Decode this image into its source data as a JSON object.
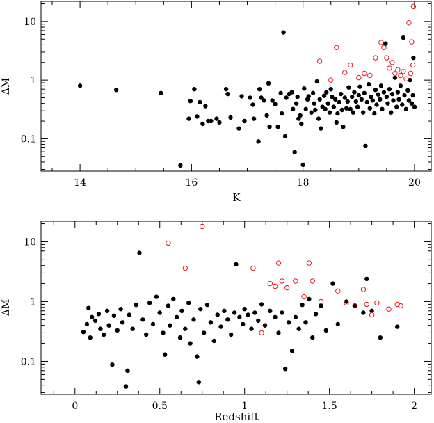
{
  "chart_data": [
    {
      "type": "scatter",
      "title": "",
      "xlabel": "K",
      "ylabel": "ΔM",
      "xlim": [
        13.3,
        20.3
      ],
      "ylim": [
        0.028,
        22
      ],
      "yscale": "log",
      "xticks": [
        14,
        16,
        18,
        20
      ],
      "xtick_labels": [
        "14",
        "16",
        "18",
        "20"
      ],
      "yticks": [
        0.1,
        1,
        10
      ],
      "ytick_labels": [
        "0.1",
        "1",
        "10"
      ],
      "grid": false,
      "series": [
        {
          "marker": "filled-circle",
          "color": "#000000",
          "points": [
            [
              14.0,
              0.8
            ],
            [
              14.65,
              0.68
            ],
            [
              15.45,
              0.6
            ],
            [
              15.8,
              0.035
            ],
            [
              15.95,
              0.22
            ],
            [
              15.98,
              0.44
            ],
            [
              16.05,
              0.7
            ],
            [
              16.1,
              0.24
            ],
            [
              16.15,
              0.42
            ],
            [
              16.2,
              0.18
            ],
            [
              16.25,
              0.36
            ],
            [
              16.3,
              0.2
            ],
            [
              16.35,
              0.2
            ],
            [
              16.45,
              0.22
            ],
            [
              16.5,
              0.19
            ],
            [
              16.62,
              0.7
            ],
            [
              16.65,
              0.58
            ],
            [
              16.7,
              0.23
            ],
            [
              16.85,
              0.15
            ],
            [
              16.9,
              0.53
            ],
            [
              16.95,
              0.2
            ],
            [
              17.05,
              0.5
            ],
            [
              17.1,
              0.38
            ],
            [
              17.12,
              0.22
            ],
            [
              17.2,
              0.09
            ],
            [
              17.22,
              0.7
            ],
            [
              17.25,
              0.5
            ],
            [
              17.3,
              0.45
            ],
            [
              17.35,
              0.25
            ],
            [
              17.38,
              0.88
            ],
            [
              17.4,
              0.16
            ],
            [
              17.45,
              0.45
            ],
            [
              17.5,
              0.39
            ],
            [
              17.55,
              0.16
            ],
            [
              17.6,
              0.6
            ],
            [
              17.62,
              0.27
            ],
            [
              17.65,
              6.5
            ],
            [
              17.68,
              0.11
            ],
            [
              17.7,
              0.5
            ],
            [
              17.75,
              0.58
            ],
            [
              17.8,
              0.62
            ],
            [
              17.82,
              0.32
            ],
            [
              17.85,
              0.059
            ],
            [
              17.88,
              0.4
            ],
            [
              17.9,
              0.52
            ],
            [
              17.92,
              0.22
            ],
            [
              17.95,
              0.25
            ],
            [
              17.97,
              0.18
            ],
            [
              18.0,
              0.036
            ],
            [
              18.02,
              0.72
            ],
            [
              18.05,
              0.32
            ],
            [
              18.08,
              0.47
            ],
            [
              18.1,
              0.53
            ],
            [
              18.15,
              0.28
            ],
            [
              18.18,
              0.6
            ],
            [
              18.2,
              0.4
            ],
            [
              18.22,
              0.31
            ],
            [
              18.25,
              0.95
            ],
            [
              18.28,
              0.22
            ],
            [
              18.3,
              0.47
            ],
            [
              18.32,
              0.15
            ],
            [
              18.35,
              0.35
            ],
            [
              18.38,
              0.54
            ],
            [
              18.4,
              0.32
            ],
            [
              18.42,
              0.62
            ],
            [
              18.45,
              0.4
            ],
            [
              18.48,
              0.28
            ],
            [
              18.5,
              0.7
            ],
            [
              18.52,
              0.52
            ],
            [
              18.55,
              0.35
            ],
            [
              18.58,
              0.47
            ],
            [
              18.6,
              0.19
            ],
            [
              18.62,
              0.27
            ],
            [
              18.65,
              0.42
            ],
            [
              18.68,
              0.58
            ],
            [
              18.7,
              0.31
            ],
            [
              18.72,
              0.16
            ],
            [
              18.75,
              0.5
            ],
            [
              18.78,
              0.33
            ],
            [
              18.8,
              0.43
            ],
            [
              18.82,
              0.75
            ],
            [
              18.85,
              0.32
            ],
            [
              18.88,
              0.52
            ],
            [
              18.9,
              0.28
            ],
            [
              18.92,
              0.62
            ],
            [
              18.95,
              0.43
            ],
            [
              18.98,
              0.35
            ],
            [
              19.0,
              0.55
            ],
            [
              19.02,
              0.77
            ],
            [
              19.05,
              0.47
            ],
            [
              19.08,
              0.28
            ],
            [
              19.1,
              0.6
            ],
            [
              19.12,
              0.075
            ],
            [
              19.15,
              0.42
            ],
            [
              19.18,
              0.85
            ],
            [
              19.2,
              0.33
            ],
            [
              19.22,
              0.52
            ],
            [
              19.25,
              0.45
            ],
            [
              19.28,
              0.27
            ],
            [
              19.3,
              0.68
            ],
            [
              19.32,
              0.38
            ],
            [
              19.35,
              0.57
            ],
            [
              19.38,
              0.47
            ],
            [
              19.4,
              0.8
            ],
            [
              19.42,
              0.32
            ],
            [
              19.45,
              0.62
            ],
            [
              19.48,
              4.2
            ],
            [
              19.5,
              0.52
            ],
            [
              19.52,
              0.4
            ],
            [
              19.55,
              0.7
            ],
            [
              19.58,
              0.28
            ],
            [
              19.6,
              0.58
            ],
            [
              19.62,
              0.45
            ],
            [
              19.65,
              1.1
            ],
            [
              19.68,
              0.35
            ],
            [
              19.7,
              0.62
            ],
            [
              19.72,
              0.47
            ],
            [
              19.75,
              0.8
            ],
            [
              19.78,
              0.38
            ],
            [
              19.8,
              5.3
            ],
            [
              19.82,
              0.55
            ],
            [
              19.85,
              0.32
            ],
            [
              19.88,
              0.67
            ],
            [
              19.9,
              0.45
            ],
            [
              19.92,
              1.0
            ],
            [
              19.95,
              0.4
            ],
            [
              19.97,
              0.55
            ],
            [
              19.98,
              2.4
            ],
            [
              20.0,
              0.35
            ]
          ]
        },
        {
          "marker": "open-circle",
          "color": "#e8191c",
          "points": [
            [
              18.3,
              2.1
            ],
            [
              18.5,
              1.0
            ],
            [
              18.6,
              3.6
            ],
            [
              18.75,
              1.35
            ],
            [
              18.85,
              1.8
            ],
            [
              19.0,
              1.1
            ],
            [
              19.1,
              1.3
            ],
            [
              19.2,
              1.2
            ],
            [
              19.3,
              2.4
            ],
            [
              19.4,
              4.4
            ],
            [
              19.45,
              3.6
            ],
            [
              19.5,
              2.4
            ],
            [
              19.55,
              1.6
            ],
            [
              19.6,
              2.0
            ],
            [
              19.65,
              1.3
            ],
            [
              19.7,
              1.5
            ],
            [
              19.75,
              1.2
            ],
            [
              19.8,
              1.4
            ],
            [
              19.85,
              1.05
            ],
            [
              19.9,
              9.5
            ],
            [
              19.93,
              1.3
            ],
            [
              19.95,
              4.5
            ],
            [
              19.97,
              1.8
            ],
            [
              19.98,
              18.0
            ]
          ]
        }
      ]
    },
    {
      "type": "scatter",
      "title": "",
      "xlabel": "Redshift",
      "ylabel": "ΔM",
      "xlim": [
        -0.2,
        2.1
      ],
      "ylim": [
        0.028,
        22
      ],
      "yscale": "log",
      "xticks": [
        0,
        0.5,
        1,
        1.5,
        2
      ],
      "xtick_labels": [
        "0",
        "0.5",
        "1",
        "1.5",
        "2"
      ],
      "yticks": [
        0.1,
        1,
        10
      ],
      "ytick_labels": [
        "0.1",
        "1",
        "10"
      ],
      "grid": false,
      "series": [
        {
          "marker": "filled-circle",
          "color": "#000000",
          "points": [
            [
              0.05,
              0.31
            ],
            [
              0.07,
              0.42
            ],
            [
              0.08,
              0.78
            ],
            [
              0.09,
              0.25
            ],
            [
              0.1,
              0.55
            ],
            [
              0.12,
              0.48
            ],
            [
              0.14,
              0.62
            ],
            [
              0.15,
              0.35
            ],
            [
              0.17,
              0.28
            ],
            [
              0.19,
              0.7
            ],
            [
              0.2,
              0.4
            ],
            [
              0.22,
              0.088
            ],
            [
              0.23,
              0.58
            ],
            [
              0.25,
              0.33
            ],
            [
              0.27,
              0.75
            ],
            [
              0.28,
              0.45
            ],
            [
              0.3,
              0.038
            ],
            [
              0.31,
              0.07
            ],
            [
              0.32,
              0.6
            ],
            [
              0.34,
              0.35
            ],
            [
              0.36,
              0.88
            ],
            [
              0.38,
              6.5
            ],
            [
              0.4,
              0.5
            ],
            [
              0.42,
              0.28
            ],
            [
              0.44,
              0.95
            ],
            [
              0.46,
              0.42
            ],
            [
              0.48,
              1.2
            ],
            [
              0.5,
              0.65
            ],
            [
              0.52,
              0.3
            ],
            [
              0.53,
              0.13
            ],
            [
              0.55,
              0.85
            ],
            [
              0.56,
              0.4
            ],
            [
              0.58,
              1.1
            ],
            [
              0.6,
              0.55
            ],
            [
              0.62,
              0.25
            ],
            [
              0.63,
              0.7
            ],
            [
              0.65,
              0.35
            ],
            [
              0.67,
              0.95
            ],
            [
              0.68,
              0.2
            ],
            [
              0.7,
              0.5
            ],
            [
              0.72,
              0.12
            ],
            [
              0.73,
              0.045
            ],
            [
              0.74,
              0.75
            ],
            [
              0.76,
              0.3
            ],
            [
              0.78,
              0.88
            ],
            [
              0.8,
              0.45
            ],
            [
              0.82,
              0.22
            ],
            [
              0.84,
              0.6
            ],
            [
              0.86,
              0.38
            ],
            [
              0.88,
              0.7
            ],
            [
              0.9,
              0.5
            ],
            [
              0.92,
              0.28
            ],
            [
              0.94,
              0.65
            ],
            [
              0.95,
              4.2
            ],
            [
              0.97,
              0.55
            ],
            [
              0.99,
              0.42
            ],
            [
              1.0,
              0.75
            ],
            [
              1.02,
              0.6
            ],
            [
              1.04,
              0.35
            ],
            [
              1.06,
              0.65
            ],
            [
              1.08,
              0.48
            ],
            [
              1.1,
              0.9
            ],
            [
              1.12,
              0.4
            ],
            [
              1.15,
              0.7
            ],
            [
              1.18,
              0.55
            ],
            [
              1.2,
              0.3
            ],
            [
              1.22,
              0.65
            ],
            [
              1.24,
              0.075
            ],
            [
              1.26,
              0.45
            ],
            [
              1.28,
              0.15
            ],
            [
              1.3,
              0.55
            ],
            [
              1.32,
              0.35
            ],
            [
              1.34,
              0.88
            ],
            [
              1.36,
              0.45
            ],
            [
              1.38,
              1.1
            ],
            [
              1.4,
              0.25
            ],
            [
              1.42,
              0.62
            ],
            [
              1.45,
              0.85
            ],
            [
              1.48,
              0.33
            ],
            [
              1.52,
              2.0
            ],
            [
              1.55,
              0.42
            ],
            [
              1.6,
              1.0
            ],
            [
              1.65,
              0.85
            ],
            [
              1.7,
              0.65
            ],
            [
              1.72,
              2.4
            ],
            [
              1.75,
              0.7
            ],
            [
              1.8,
              0.25
            ],
            [
              1.9,
              0.38
            ]
          ]
        },
        {
          "marker": "open-circle",
          "color": "#e8191c",
          "points": [
            [
              0.55,
              9.5
            ],
            [
              0.65,
              3.6
            ],
            [
              0.75,
              18.0
            ],
            [
              1.05,
              3.6
            ],
            [
              1.1,
              0.3
            ],
            [
              1.15,
              2.0
            ],
            [
              1.18,
              1.8
            ],
            [
              1.2,
              4.4
            ],
            [
              1.22,
              2.2
            ],
            [
              1.25,
              1.7
            ],
            [
              1.3,
              2.2
            ],
            [
              1.35,
              1.2
            ],
            [
              1.38,
              4.4
            ],
            [
              1.4,
              2.2
            ],
            [
              1.45,
              1.0
            ],
            [
              1.55,
              1.5
            ],
            [
              1.6,
              0.95
            ],
            [
              1.65,
              0.85
            ],
            [
              1.7,
              1.6
            ],
            [
              1.72,
              0.9
            ],
            [
              1.75,
              0.6
            ],
            [
              1.78,
              0.95
            ],
            [
              1.85,
              0.75
            ],
            [
              1.9,
              0.9
            ],
            [
              1.92,
              0.85
            ]
          ]
        }
      ]
    }
  ]
}
